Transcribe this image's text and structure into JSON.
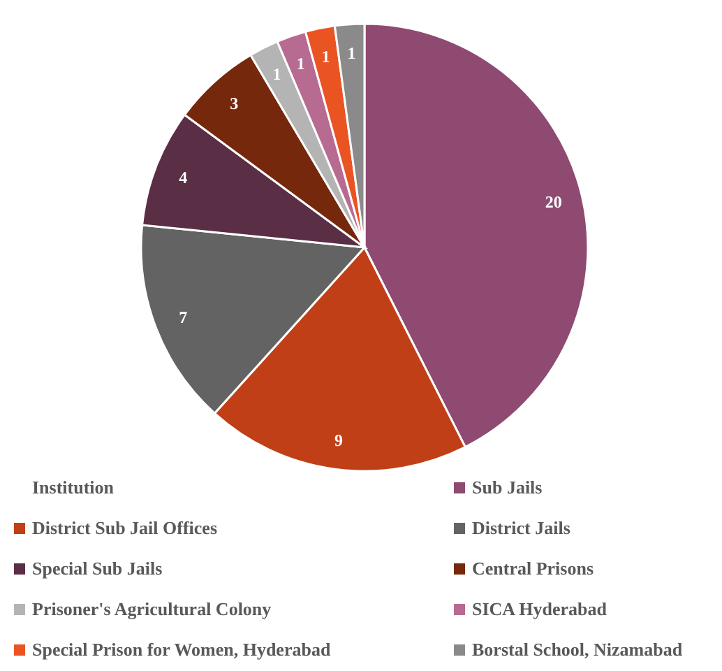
{
  "chart_data": {
    "type": "pie",
    "legend_title": "Institution",
    "legend": "bottom",
    "data_labels": true,
    "categories": [
      "Sub Jails",
      "District Sub Jail Offices",
      "District Jails",
      "Special Sub Jails",
      "Central Prisons",
      "Prisoner's Agricultural Colony",
      "SICA Hyderabad",
      "Special Prison for Women, Hyderabad",
      "Borstal School, Nizamabad"
    ],
    "values": [
      20,
      9,
      7,
      4,
      3,
      1,
      1,
      1,
      1
    ],
    "colors": [
      "#8e4a70",
      "#c03f17",
      "#636363",
      "#5a2e45",
      "#76280d",
      "#b4b4b4",
      "#b86b91",
      "#ea5423",
      "#8a8a8a"
    ]
  }
}
